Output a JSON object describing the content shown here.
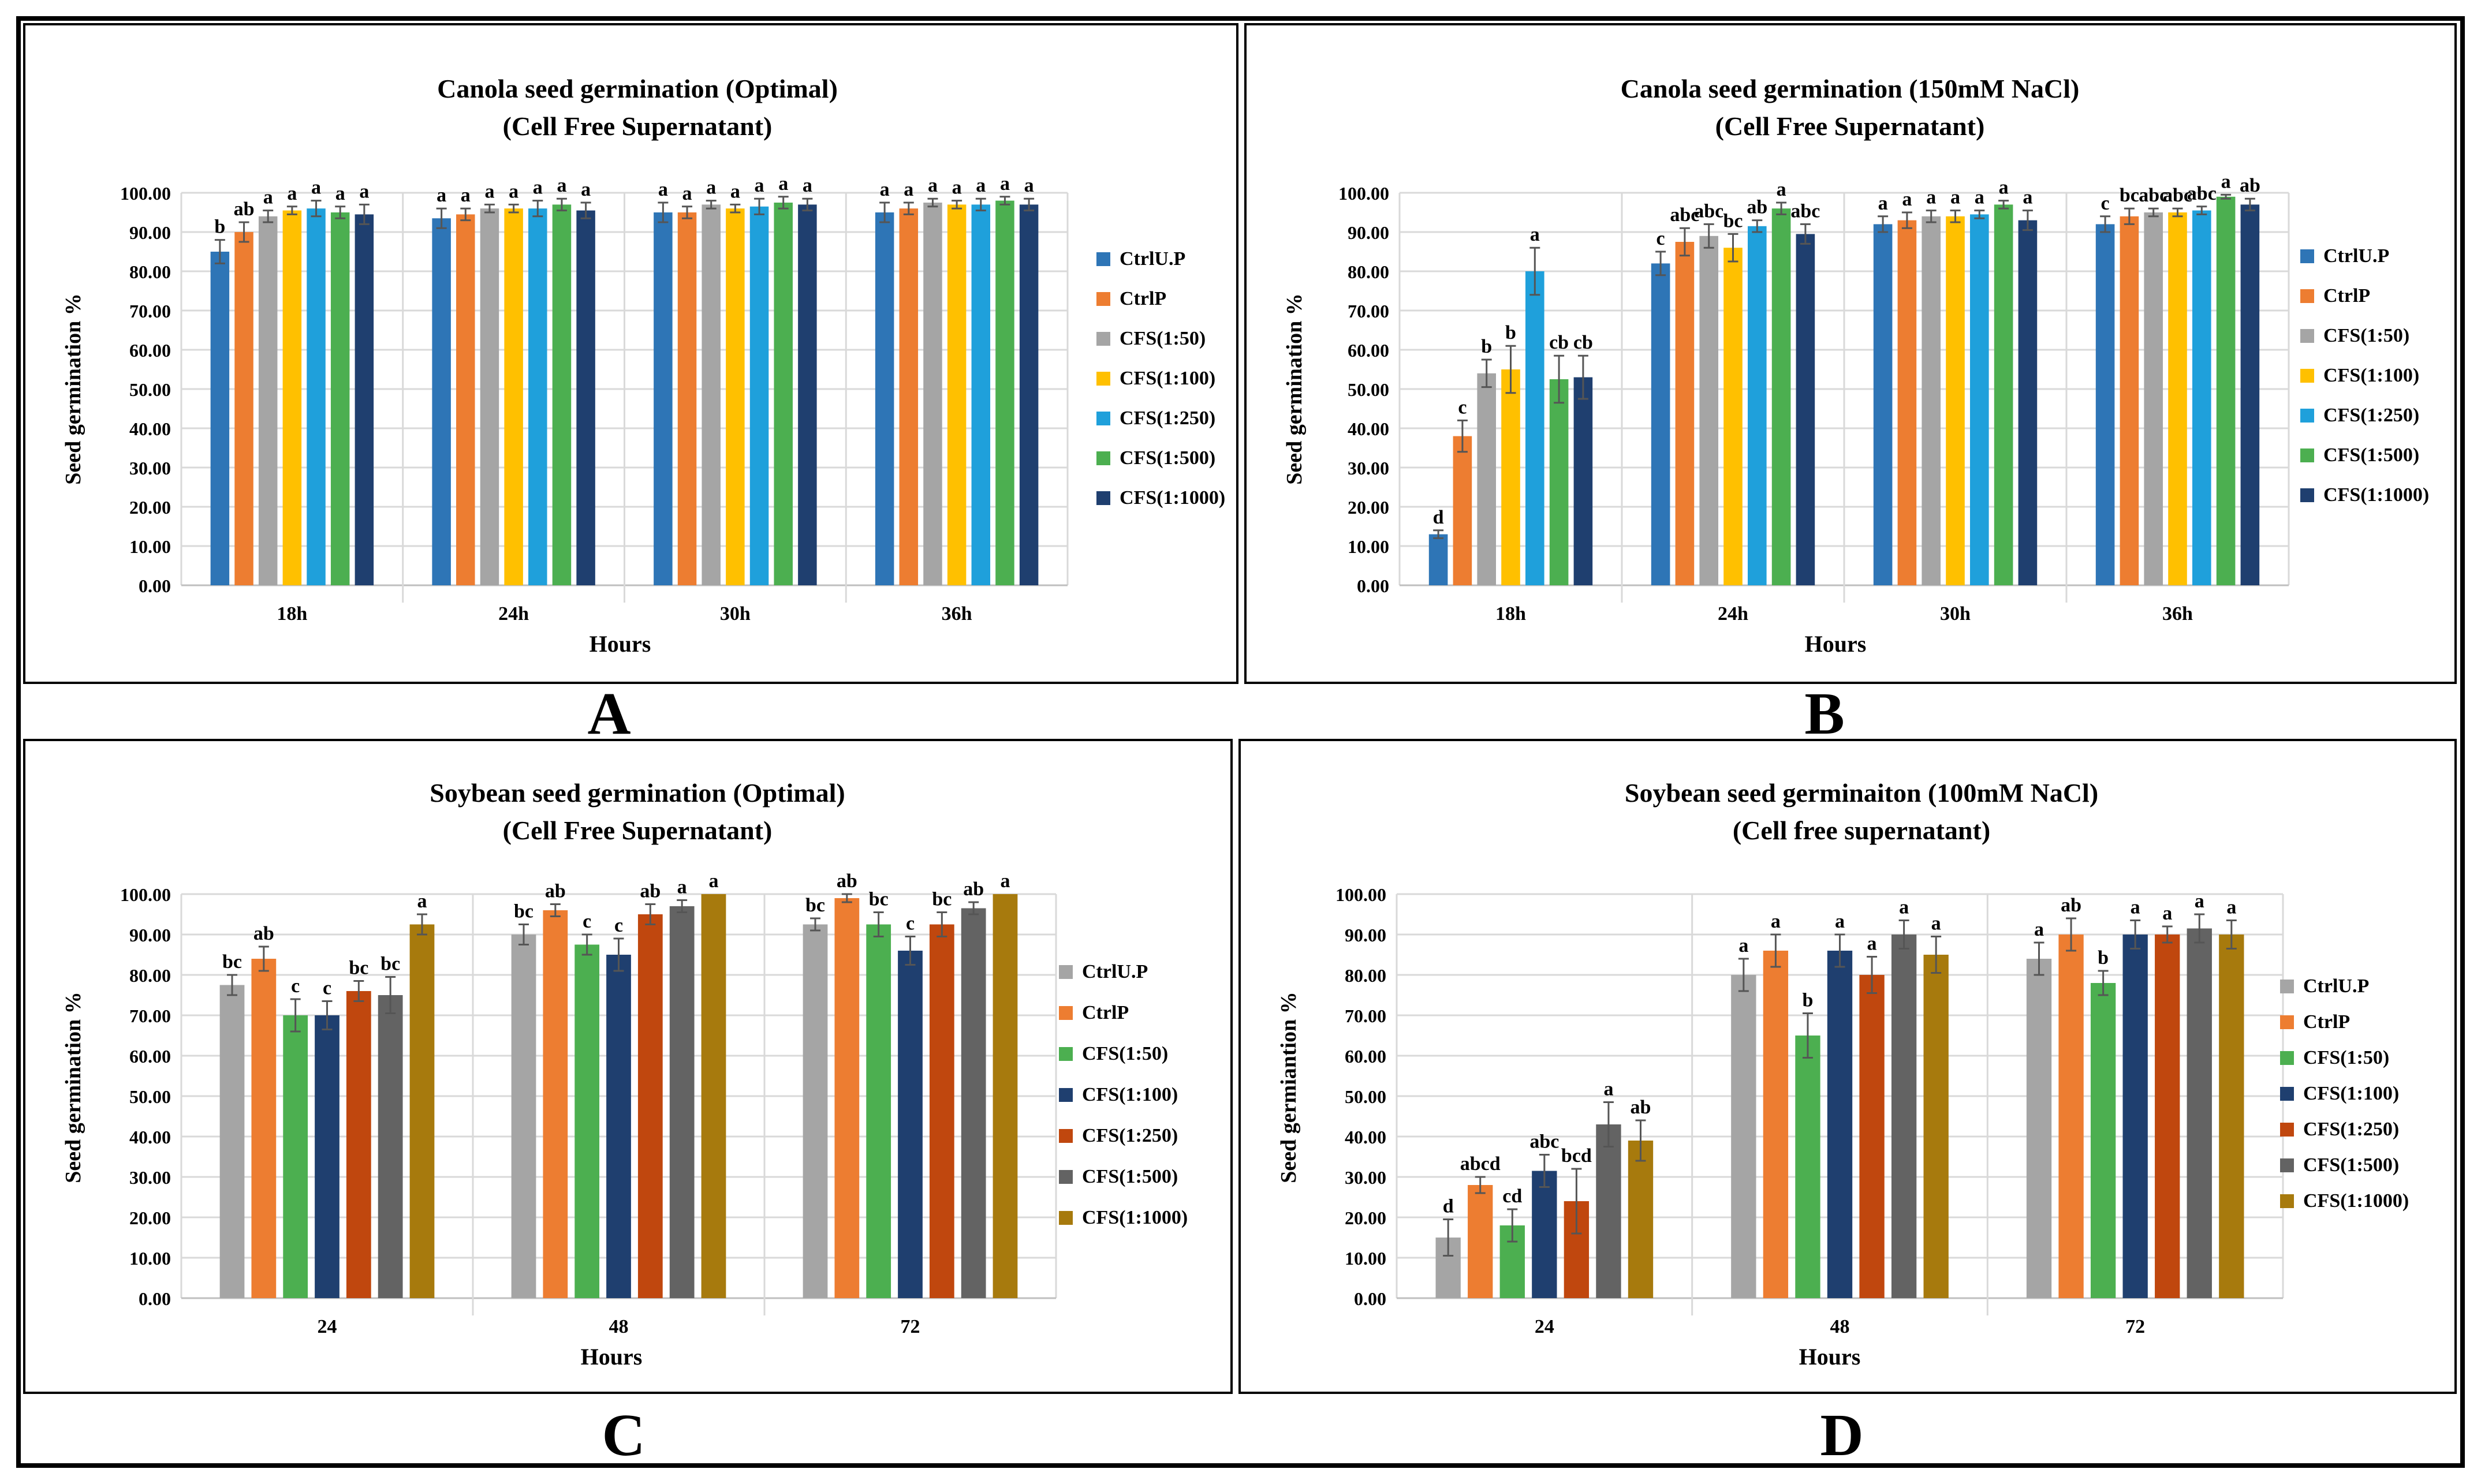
{
  "figure": {
    "panel_labels": [
      "A",
      "B",
      "C",
      "D"
    ]
  },
  "chart_data": [
    {
      "type": "bar",
      "title": "Canola seed germination (Optimal)",
      "subtitle": "(Cell Free Supernatant)",
      "xlabel": "Hours",
      "ylabel": "Seed germination  %",
      "ylim": [
        0,
        100
      ],
      "yticks": [
        "0.00",
        "10.00",
        "20.00",
        "30.00",
        "40.00",
        "50.00",
        "60.00",
        "70.00",
        "80.00",
        "90.00",
        "100.00"
      ],
      "grid": true,
      "legend_position": "right",
      "categories": [
        "18h",
        "24h",
        "30h",
        "36h"
      ],
      "series": [
        {
          "name": "CtrlU.P",
          "color": "#2E75B6",
          "values": [
            85,
            93.5,
            95,
            95
          ],
          "errors": [
            3,
            2.5,
            2.5,
            2.5
          ],
          "labels": [
            "b",
            "a",
            "a",
            "a"
          ]
        },
        {
          "name": "CtrlP",
          "color": "#ED7D31",
          "values": [
            90,
            94.5,
            95,
            96
          ],
          "errors": [
            2.5,
            1.5,
            1.5,
            1.5
          ],
          "labels": [
            "ab",
            "a",
            "a",
            "a"
          ]
        },
        {
          "name": "CFS(1:50)",
          "color": "#A5A5A5",
          "values": [
            94,
            96,
            97,
            97.5
          ],
          "errors": [
            1.5,
            1,
            1,
            1
          ],
          "labels": [
            "a",
            "a",
            "a",
            "a"
          ]
        },
        {
          "name": "CFS(1:100)",
          "color": "#FFC000",
          "values": [
            95.5,
            96,
            96,
            97
          ],
          "errors": [
            1,
            1,
            1,
            1
          ],
          "labels": [
            "a",
            "a",
            "a",
            "a"
          ]
        },
        {
          "name": "CFS(1:250)",
          "color": "#1FA0DB",
          "values": [
            96,
            96,
            96.5,
            97
          ],
          "errors": [
            2,
            2,
            2,
            1.5
          ],
          "labels": [
            "a",
            "a",
            "a",
            "a"
          ]
        },
        {
          "name": "CFS(1:500)",
          "color": "#4CAF50",
          "values": [
            95,
            97,
            97.5,
            98
          ],
          "errors": [
            1.5,
            1.5,
            1.5,
            1
          ],
          "labels": [
            "a",
            "a",
            "a",
            "a"
          ]
        },
        {
          "name": "CFS(1:1000)",
          "color": "#1F3F6F",
          "values": [
            94.5,
            95.5,
            97,
            97
          ],
          "errors": [
            2.5,
            2,
            1.5,
            1.5
          ],
          "labels": [
            "a",
            "a",
            "a",
            "a"
          ]
        }
      ]
    },
    {
      "type": "bar",
      "title": "Canola seed germination (150mM NaCl)",
      "subtitle": "(Cell Free Supernatant)",
      "xlabel": "Hours",
      "ylabel": "Seed germination  %",
      "ylim": [
        0,
        100
      ],
      "yticks": [
        "0.00",
        "10.00",
        "20.00",
        "30.00",
        "40.00",
        "50.00",
        "60.00",
        "70.00",
        "80.00",
        "90.00",
        "100.00"
      ],
      "grid": true,
      "legend_position": "right",
      "categories": [
        "18h",
        "24h",
        "30h",
        "36h"
      ],
      "series": [
        {
          "name": "CtrlU.P",
          "color": "#2E75B6",
          "values": [
            13,
            82,
            92,
            92
          ],
          "errors": [
            1,
            3,
            2,
            2
          ],
          "labels": [
            "d",
            "c",
            "a",
            "c"
          ]
        },
        {
          "name": "CtrlP",
          "color": "#ED7D31",
          "values": [
            38,
            87.5,
            93,
            94
          ],
          "errors": [
            4,
            3.5,
            2,
            2
          ],
          "labels": [
            "c",
            "abc",
            "a",
            "bc"
          ]
        },
        {
          "name": "CFS(1:50)",
          "color": "#A5A5A5",
          "values": [
            54,
            89,
            94,
            95
          ],
          "errors": [
            3.5,
            3,
            1.5,
            1
          ],
          "labels": [
            "b",
            "abc",
            "a",
            "abc"
          ]
        },
        {
          "name": "CFS(1:100)",
          "color": "#FFC000",
          "values": [
            55,
            86,
            94,
            95
          ],
          "errors": [
            6,
            3.5,
            1.5,
            1
          ],
          "labels": [
            "b",
            "bc",
            "a",
            "abc"
          ]
        },
        {
          "name": "CFS(1:250)",
          "color": "#1FA0DB",
          "values": [
            80,
            91.5,
            94.5,
            95.5
          ],
          "errors": [
            6,
            1.5,
            1,
            1
          ],
          "labels": [
            "a",
            "ab",
            "a",
            "abc"
          ]
        },
        {
          "name": "CFS(1:500)",
          "color": "#4CAF50",
          "values": [
            52.5,
            96,
            97,
            99
          ],
          "errors": [
            6,
            1.5,
            1,
            0.5
          ],
          "labels": [
            "cb",
            "a",
            "a",
            "a"
          ]
        },
        {
          "name": "CFS(1:1000)",
          "color": "#1F3F6F",
          "values": [
            53,
            89.5,
            93,
            97
          ],
          "errors": [
            5.5,
            2.5,
            2.5,
            1.5
          ],
          "labels": [
            "cb",
            "abc",
            "a",
            "ab"
          ]
        }
      ]
    },
    {
      "type": "bar",
      "title": "Soybean seed germination (Optimal)",
      "subtitle": "(Cell Free Supernatant)",
      "xlabel": "Hours",
      "ylabel": "Seed germination  %",
      "ylim": [
        0,
        100
      ],
      "yticks": [
        "0.00",
        "10.00",
        "20.00",
        "30.00",
        "40.00",
        "50.00",
        "60.00",
        "70.00",
        "80.00",
        "90.00",
        "100.00"
      ],
      "grid": true,
      "legend_position": "right",
      "categories": [
        "24",
        "48",
        "72"
      ],
      "series": [
        {
          "name": "CtrlU.P",
          "color": "#A5A5A5",
          "values": [
            77.5,
            90,
            92.5
          ],
          "errors": [
            2.5,
            2.5,
            1.5
          ],
          "labels": [
            "bc",
            "bc",
            "bc"
          ]
        },
        {
          "name": "CtrlP",
          "color": "#ED7D31",
          "values": [
            84,
            96,
            99
          ],
          "errors": [
            3,
            1.5,
            1
          ],
          "labels": [
            "ab",
            "ab",
            "ab"
          ]
        },
        {
          "name": "CFS(1:50)",
          "color": "#4CAF50",
          "values": [
            70,
            87.5,
            92.5
          ],
          "errors": [
            4,
            2.5,
            3
          ],
          "labels": [
            "c",
            "c",
            "bc"
          ]
        },
        {
          "name": "CFS(1:100)",
          "color": "#1F3F6F",
          "values": [
            70,
            85,
            86
          ],
          "errors": [
            3.5,
            4,
            3.5
          ],
          "labels": [
            "c",
            "c",
            "c"
          ]
        },
        {
          "name": "CFS(1:250)",
          "color": "#C0470E",
          "values": [
            76,
            95,
            92.5
          ],
          "errors": [
            2.5,
            2.5,
            3
          ],
          "labels": [
            "bc",
            "ab",
            "bc"
          ]
        },
        {
          "name": "CFS(1:500)",
          "color": "#636363",
          "values": [
            75,
            97,
            96.5
          ],
          "errors": [
            4.5,
            1.5,
            1.5
          ],
          "labels": [
            "bc",
            "a",
            "ab"
          ]
        },
        {
          "name": "CFS(1:1000)",
          "color": "#A77A0D",
          "values": [
            92.5,
            100,
            100
          ],
          "errors": [
            2.5,
            0,
            0
          ],
          "labels": [
            "a",
            "a",
            "a"
          ]
        }
      ]
    },
    {
      "type": "bar",
      "title": "Soybean seed germinaiton (100mM NaCl)",
      "subtitle": "(Cell free supernatant)",
      "xlabel": "Hours",
      "ylabel": "Seed germiantion  %",
      "ylim": [
        0,
        100
      ],
      "yticks": [
        "0.00",
        "10.00",
        "20.00",
        "30.00",
        "40.00",
        "50.00",
        "60.00",
        "70.00",
        "80.00",
        "90.00",
        "100.00"
      ],
      "grid": true,
      "legend_position": "right",
      "categories": [
        "24",
        "48",
        "72"
      ],
      "series": [
        {
          "name": "CtrlU.P",
          "color": "#A5A5A5",
          "values": [
            15,
            80,
            84
          ],
          "errors": [
            4.5,
            4,
            4
          ],
          "labels": [
            "d",
            "a",
            "a"
          ]
        },
        {
          "name": "CtrlP",
          "color": "#ED7D31",
          "values": [
            28,
            86,
            90
          ],
          "errors": [
            2,
            4,
            4
          ],
          "labels": [
            "abcd",
            "a",
            "ab"
          ]
        },
        {
          "name": "CFS(1:50)",
          "color": "#4CAF50",
          "values": [
            18,
            65,
            78
          ],
          "errors": [
            4,
            5.5,
            3
          ],
          "labels": [
            "cd",
            "b",
            "b"
          ]
        },
        {
          "name": "CFS(1:100)",
          "color": "#1F3F6F",
          "values": [
            31.5,
            86,
            90
          ],
          "errors": [
            4,
            4,
            3.5
          ],
          "labels": [
            "abc",
            "a",
            "a"
          ]
        },
        {
          "name": "CFS(1:250)",
          "color": "#C0470E",
          "values": [
            24,
            80,
            90
          ],
          "errors": [
            8,
            4.5,
            2
          ],
          "labels": [
            "bcd",
            "a",
            "a"
          ]
        },
        {
          "name": "CFS(1:500)",
          "color": "#636363",
          "values": [
            43,
            90,
            91.5
          ],
          "errors": [
            5.5,
            3.5,
            3.5
          ],
          "labels": [
            "a",
            "a",
            "a"
          ]
        },
        {
          "name": "CFS(1:1000)",
          "color": "#A77A0D",
          "values": [
            39,
            85,
            90
          ],
          "errors": [
            5,
            4.5,
            3.5
          ],
          "labels": [
            "ab",
            "a",
            "a"
          ]
        }
      ]
    }
  ]
}
